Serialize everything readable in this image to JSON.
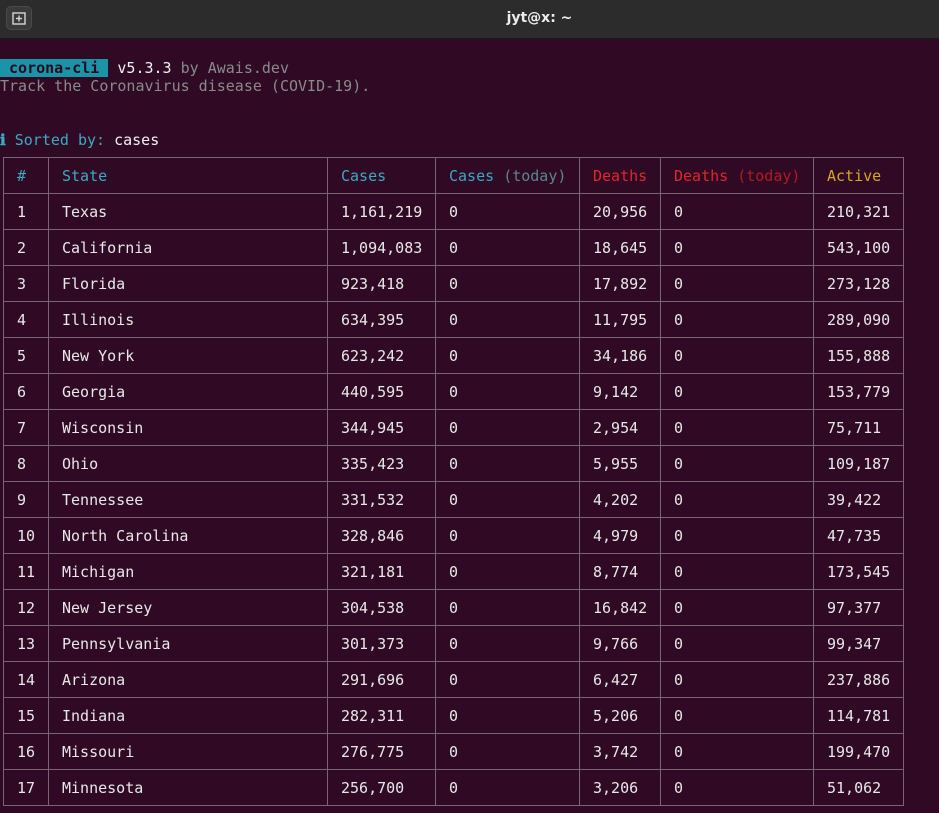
{
  "window": {
    "title": "jyt@x: ~"
  },
  "header": {
    "badge": " corona-cli ",
    "version": " v5.3.3",
    "by": " by Awais.dev",
    "tagline": "Track the Coronavirus disease (COVID-19).",
    "sorted_label": " Sorted by: ",
    "sorted_value": "cases",
    "info_glyph": "ℹ"
  },
  "table": {
    "headers": {
      "num": "#",
      "state": "State",
      "cases": "Cases",
      "cases_today_a": "Cases ",
      "cases_today_b": "(today)",
      "deaths": "Deaths",
      "deaths_today_a": "Deaths ",
      "deaths_today_b": "(today)",
      "active": "Active"
    },
    "rows": [
      {
        "n": "1",
        "state": "Texas",
        "cases": "1,161,219",
        "ct": "0",
        "deaths": "20,956",
        "dt": "0",
        "active": "210,321"
      },
      {
        "n": "2",
        "state": "California",
        "cases": "1,094,083",
        "ct": "0",
        "deaths": "18,645",
        "dt": "0",
        "active": "543,100"
      },
      {
        "n": "3",
        "state": "Florida",
        "cases": "923,418",
        "ct": "0",
        "deaths": "17,892",
        "dt": "0",
        "active": "273,128"
      },
      {
        "n": "4",
        "state": "Illinois",
        "cases": "634,395",
        "ct": "0",
        "deaths": "11,795",
        "dt": "0",
        "active": "289,090"
      },
      {
        "n": "5",
        "state": "New York",
        "cases": "623,242",
        "ct": "0",
        "deaths": "34,186",
        "dt": "0",
        "active": "155,888"
      },
      {
        "n": "6",
        "state": "Georgia",
        "cases": "440,595",
        "ct": "0",
        "deaths": "9,142",
        "dt": "0",
        "active": "153,779"
      },
      {
        "n": "7",
        "state": "Wisconsin",
        "cases": "344,945",
        "ct": "0",
        "deaths": "2,954",
        "dt": "0",
        "active": "75,711"
      },
      {
        "n": "8",
        "state": "Ohio",
        "cases": "335,423",
        "ct": "0",
        "deaths": "5,955",
        "dt": "0",
        "active": "109,187"
      },
      {
        "n": "9",
        "state": "Tennessee",
        "cases": "331,532",
        "ct": "0",
        "deaths": "4,202",
        "dt": "0",
        "active": "39,422"
      },
      {
        "n": "10",
        "state": "North Carolina",
        "cases": "328,846",
        "ct": "0",
        "deaths": "4,979",
        "dt": "0",
        "active": "47,735"
      },
      {
        "n": "11",
        "state": "Michigan",
        "cases": "321,181",
        "ct": "0",
        "deaths": "8,774",
        "dt": "0",
        "active": "173,545"
      },
      {
        "n": "12",
        "state": "New Jersey",
        "cases": "304,538",
        "ct": "0",
        "deaths": "16,842",
        "dt": "0",
        "active": "97,377"
      },
      {
        "n": "13",
        "state": "Pennsylvania",
        "cases": "301,373",
        "ct": "0",
        "deaths": "9,766",
        "dt": "0",
        "active": "99,347"
      },
      {
        "n": "14",
        "state": "Arizona",
        "cases": "291,696",
        "ct": "0",
        "deaths": "6,427",
        "dt": "0",
        "active": "237,886"
      },
      {
        "n": "15",
        "state": "Indiana",
        "cases": "282,311",
        "ct": "0",
        "deaths": "5,206",
        "dt": "0",
        "active": "114,781"
      },
      {
        "n": "16",
        "state": "Missouri",
        "cases": "276,775",
        "ct": "0",
        "deaths": "3,742",
        "dt": "0",
        "active": "199,470"
      },
      {
        "n": "17",
        "state": "Minnesota",
        "cases": "256,700",
        "ct": "0",
        "deaths": "3,206",
        "dt": "0",
        "active": "51,062"
      }
    ]
  },
  "colors": {
    "background": "#300a24",
    "cyan": "#3aa9c1",
    "red": "#e0262c",
    "yellow": "#d5a626",
    "grid": "#7a6472"
  }
}
